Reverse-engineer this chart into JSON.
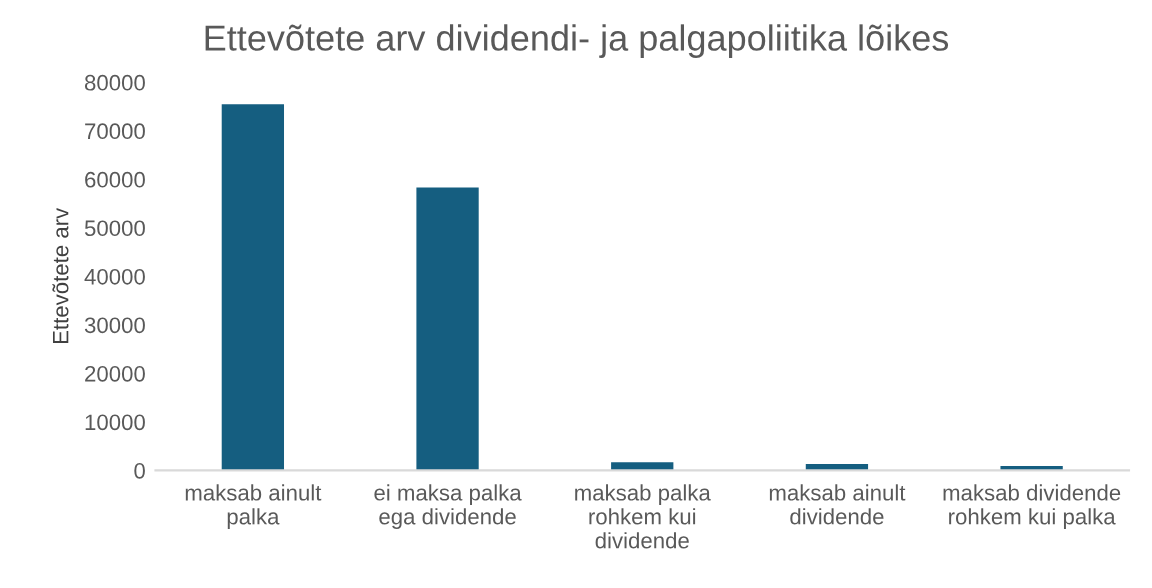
{
  "chart_data": {
    "type": "bar",
    "title": "Ettevõtete arv dividendi- ja palgapoliitika lõikes",
    "ylabel": "Ettevõtete arv",
    "categories": [
      "maksab ainult\npalka",
      "ei maksa palka\nega dividende",
      "maksab palka\nrohkem kui\ndividende",
      "maksab ainult\ndividende",
      "maksab dividende\nrohkem kui palka"
    ],
    "values": [
      75500,
      58300,
      1700,
      1300,
      900
    ],
    "color": "#155e80",
    "ylim": [
      0,
      80000
    ],
    "yticks": [
      0,
      10000,
      20000,
      30000,
      40000,
      50000,
      60000,
      70000,
      80000
    ],
    "grid": false
  }
}
